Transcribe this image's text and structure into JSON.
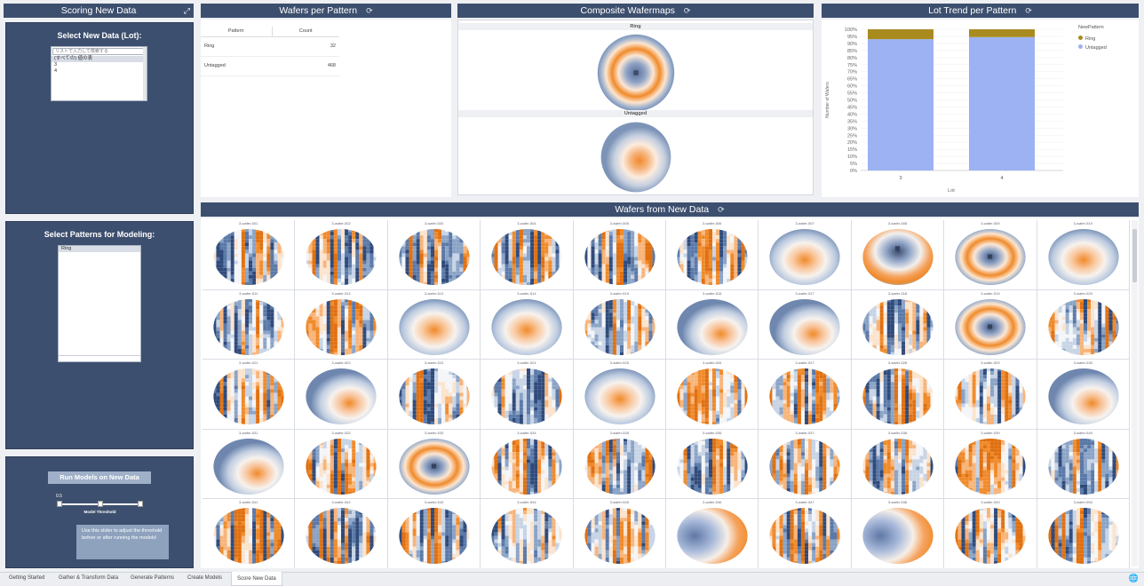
{
  "left": {
    "scoring_title": "Scoring New Data",
    "select_lot_title": "Select New Data (Lot):",
    "lot_search_placeholder": "リストで入力して検索する",
    "lot_items": [
      "(すべての) 値の表",
      "3",
      "4"
    ],
    "select_patterns_title": "Select Patterns for Modeling:",
    "pattern_items": [
      "Ring"
    ],
    "run_button": "Run Models on New Data",
    "threshold_value": "0.5",
    "threshold_fraction": 0.5,
    "threshold_label": "Model Threshold",
    "hint": "Use this slider to adjust the threshold before or after running the models!"
  },
  "wafers_per_pattern": {
    "title": "Wafers per Pattern",
    "headers": [
      "Pattern",
      "Count"
    ],
    "rows": [
      [
        "Ring",
        "32"
      ],
      [
        "Untagged",
        "468"
      ]
    ]
  },
  "composite": {
    "title": "Composite Wafermaps",
    "labels": [
      "Ring",
      "Untagged"
    ]
  },
  "lot_trend": {
    "title": "Lot Trend per Pattern",
    "legend_title": "NewPattern",
    "legend": [
      "Ring",
      "Untagged"
    ]
  },
  "chart_data": {
    "type": "bar",
    "title": "Lot Trend per Pattern",
    "xlabel": "Lot",
    "ylabel": "Number of Wafers",
    "categories": [
      "3",
      "4"
    ],
    "yticks": [
      "0%",
      "5%",
      "10%",
      "15%",
      "20%",
      "25%",
      "30%",
      "35%",
      "40%",
      "45%",
      "50%",
      "55%",
      "60%",
      "65%",
      "70%",
      "75%",
      "80%",
      "85%",
      "90%",
      "95%",
      "100%"
    ],
    "ylim": [
      0,
      100
    ],
    "series": [
      {
        "name": "Untagged",
        "values": [
          93,
          94.5
        ],
        "color": "#9cb2f2"
      },
      {
        "name": "Ring",
        "values": [
          7,
          5.5
        ],
        "color": "#a98a1f"
      }
    ],
    "legend_placement": "top-right"
  },
  "wafers_new": {
    "title": "Wafers from New Data",
    "wafer_ids": [
      "3-wafer-501",
      "3-wafer-502",
      "3-wafer-503",
      "3-wafer-504",
      "3-wafer-505",
      "3-wafer-506",
      "3-wafer-507",
      "3-wafer-508",
      "3-wafer-509",
      "3-wafer-510",
      "3-wafer-511",
      "3-wafer-512",
      "3-wafer-513",
      "3-wafer-514",
      "3-wafer-515",
      "3-wafer-516",
      "3-wafer-517",
      "3-wafer-518",
      "3-wafer-519",
      "3-wafer-520",
      "3-wafer-521",
      "3-wafer-522",
      "3-wafer-523",
      "3-wafer-524",
      "3-wafer-525",
      "3-wafer-526",
      "3-wafer-527",
      "3-wafer-528",
      "3-wafer-529",
      "3-wafer-530",
      "3-wafer-531",
      "3-wafer-532",
      "3-wafer-533",
      "3-wafer-534",
      "3-wafer-535",
      "3-wafer-536",
      "3-wafer-537",
      "3-wafer-538",
      "3-wafer-539",
      "3-wafer-540",
      "3-wafer-541",
      "3-wafer-542",
      "3-wafer-543",
      "3-wafer-544",
      "3-wafer-545",
      "3-wafer-546",
      "3-wafer-547",
      "3-wafer-548",
      "3-wafer-549",
      "3-wafer-550"
    ],
    "wafer_types": [
      "noise",
      "noise",
      "noise",
      "noise",
      "noise",
      "noise",
      "center",
      "edgebot",
      "ring",
      "center",
      "noise",
      "noise",
      "center",
      "center",
      "noise",
      "donut",
      "donut",
      "noise",
      "ring",
      "noise",
      "noise",
      "donut",
      "noise",
      "noise",
      "center",
      "noise",
      "noise",
      "noise",
      "noise",
      "donut",
      "donut",
      "noise",
      "ring",
      "noise",
      "noise",
      "noise",
      "noise",
      "noise",
      "noise",
      "noise",
      "noise",
      "noise",
      "noise",
      "noise",
      "noise",
      "edgeright",
      "noise",
      "edgeright",
      "noise",
      "noise"
    ]
  },
  "tabs": [
    "Getting Started",
    "Gather & Transform Data",
    "Generate Patterns",
    "Create Models",
    "Score New Data"
  ],
  "active_tab": "Score New Data",
  "colors": {
    "panel": "#3d4f6e",
    "orange": "#f08a2a",
    "blue": "#7d94b8",
    "ring": "#a98a1f",
    "untagged": "#9cb2f2"
  }
}
